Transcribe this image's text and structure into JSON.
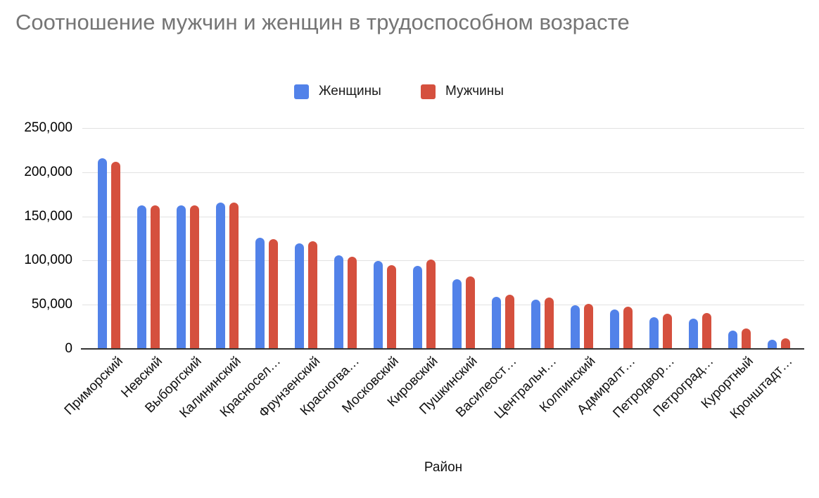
{
  "title": "Соотношение мужчин и женщин в трудоспособном возрасте",
  "legend": [
    {
      "label": "Женщины",
      "color": "#5282E9"
    },
    {
      "label": "Мужчины",
      "color": "#D5503E"
    }
  ],
  "chart_data": {
    "type": "bar",
    "title": "Соотношение мужчин и женщин в трудоспособном возрасте",
    "xlabel": "Район",
    "ylabel": "",
    "ylim": [
      0,
      250000
    ],
    "grid": true,
    "legend_position": "top",
    "yticks": [
      0,
      50000,
      100000,
      150000,
      200000,
      250000
    ],
    "ytick_labels": [
      "0",
      "50,000",
      "100,000",
      "150,000",
      "200,000",
      "250,000"
    ],
    "categories": [
      "Приморский",
      "Невский",
      "Выборгский",
      "Калининский",
      "Красносел…",
      "Фрунзенский",
      "Красногва…",
      "Московский",
      "Кировский",
      "Пушкинский",
      "Василеост…",
      "Центральн…",
      "Колпинский",
      "Адмиралт…",
      "Петродвор…",
      "Петроград…",
      "Курортный",
      "Кронштадт…"
    ],
    "series": [
      {
        "name": "Женщины",
        "color": "#5282E9",
        "values": [
          215500,
          162500,
          162500,
          166000,
          126000,
          119500,
          106000,
          99500,
          94000,
          78500,
          59000,
          56000,
          49500,
          44500,
          35500,
          34500,
          21000,
          10000
        ]
      },
      {
        "name": "Мужчины",
        "color": "#D5503E",
        "values": [
          212000,
          162500,
          162500,
          166000,
          124000,
          121500,
          104000,
          94500,
          101000,
          82000,
          61000,
          58000,
          51000,
          47500,
          40000,
          40500,
          23000,
          12000
        ]
      }
    ]
  },
  "colors": {
    "title_text": "#757575",
    "gridline": "#e2e2e2",
    "axis_line": "#333333",
    "tick_text": "#000000",
    "background": "#ffffff"
  }
}
